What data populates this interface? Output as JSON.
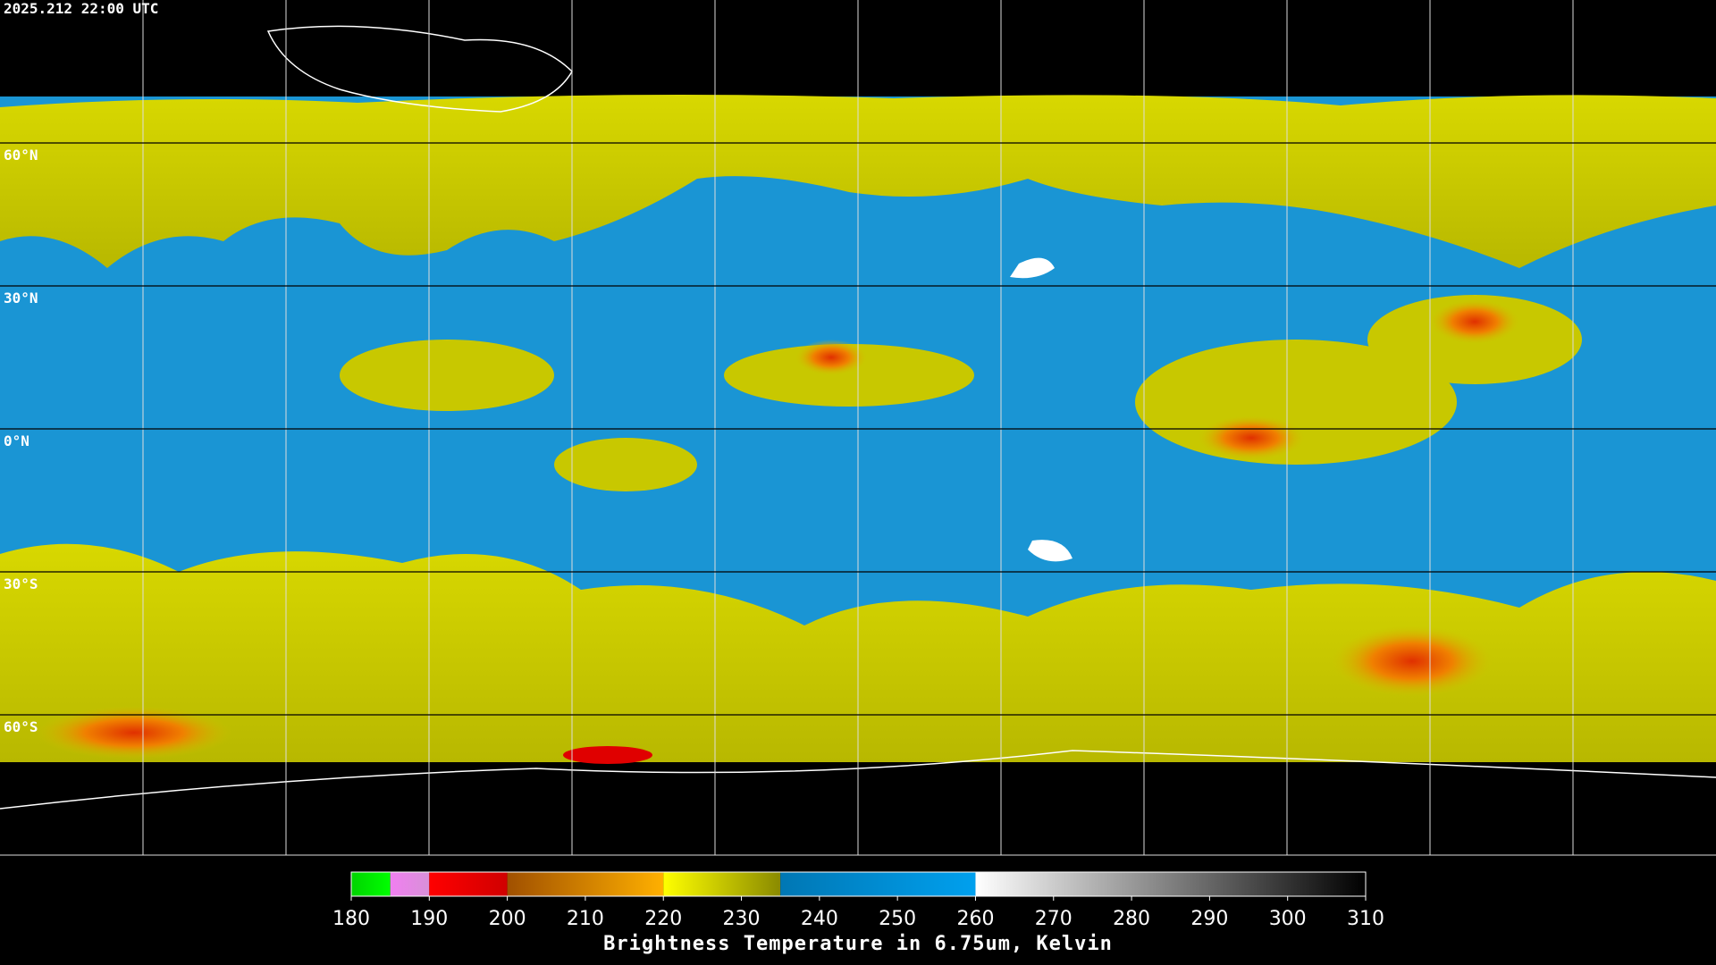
{
  "header": {
    "timestamp": "2025.212 22:00 UTC"
  },
  "map": {
    "lat_labels": [
      "60°N",
      "30°N",
      "0°N",
      "30°S",
      "60°S"
    ]
  },
  "colorbar": {
    "label": "Brightness Temperature in 6.75um, Kelvin",
    "lim": [
      180,
      310
    ],
    "ticks": [
      180,
      190,
      200,
      210,
      220,
      230,
      240,
      250,
      260,
      270,
      280,
      290,
      300,
      310
    ],
    "segments": [
      {
        "from": 180,
        "to": 185,
        "colors": [
          "#00d400",
          "#00ff00"
        ]
      },
      {
        "from": 185,
        "to": 190,
        "colors": [
          "#f07ff0",
          "#d890d8"
        ]
      },
      {
        "from": 190,
        "to": 200,
        "colors": [
          "#ff0000",
          "#d00000"
        ]
      },
      {
        "from": 200,
        "to": 220,
        "colors": [
          "#a05000",
          "#ffb000"
        ]
      },
      {
        "from": 220,
        "to": 235,
        "colors": [
          "#ffff00",
          "#8a8a00"
        ]
      },
      {
        "from": 235,
        "to": 260,
        "colors": [
          "#0077b4",
          "#00a0ee"
        ]
      },
      {
        "from": 260,
        "to": 310,
        "colors": [
          "#ffffff",
          "#000000"
        ]
      }
    ]
  }
}
